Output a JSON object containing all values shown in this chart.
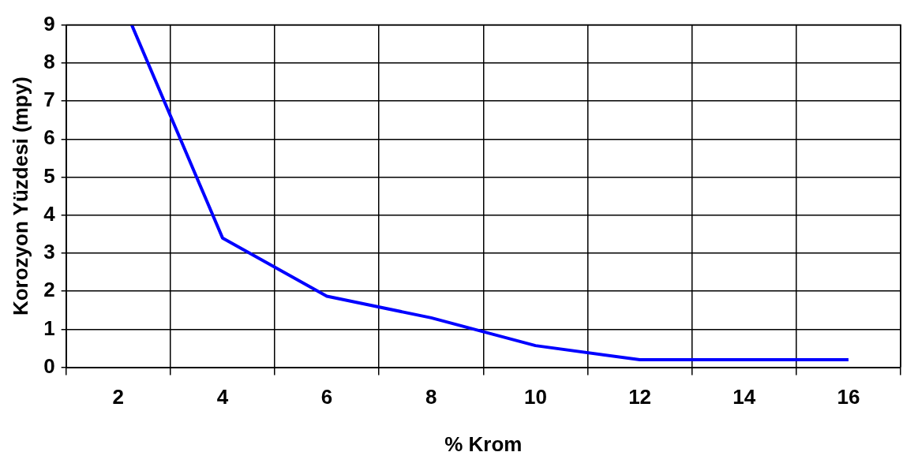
{
  "chart_data": {
    "type": "line",
    "xlabel": "% Krom",
    "ylabel": "Korozyon Yüzdesi (mpy)",
    "x": [
      2.26,
      4,
      6,
      8,
      10,
      12,
      14,
      16
    ],
    "series": [
      {
        "color": "#0000ff",
        "values": [
          9,
          3.4,
          1.87,
          1.3,
          0.57,
          0.2,
          0.2,
          0.2
        ]
      }
    ],
    "xlim": [
      1,
      17
    ],
    "xticks": [
      {
        "value": 1,
        "label": null
      },
      2,
      {
        "value": 3,
        "label": null
      },
      4,
      {
        "value": 5,
        "label": null
      },
      6,
      {
        "value": 7,
        "label": null
      },
      8,
      {
        "value": 9,
        "label": null
      },
      10,
      {
        "value": 11,
        "label": null
      },
      12,
      {
        "value": 13,
        "label": null
      },
      14,
      {
        "value": 15,
        "label": null
      },
      16,
      {
        "value": 17,
        "label": null
      }
    ],
    "ylim": [
      0,
      9
    ],
    "yticks": [
      0,
      1,
      2,
      3,
      4,
      5,
      6,
      7,
      8,
      9
    ],
    "grid": true,
    "marker": "none",
    "line_style": "solid",
    "legend": false
  }
}
